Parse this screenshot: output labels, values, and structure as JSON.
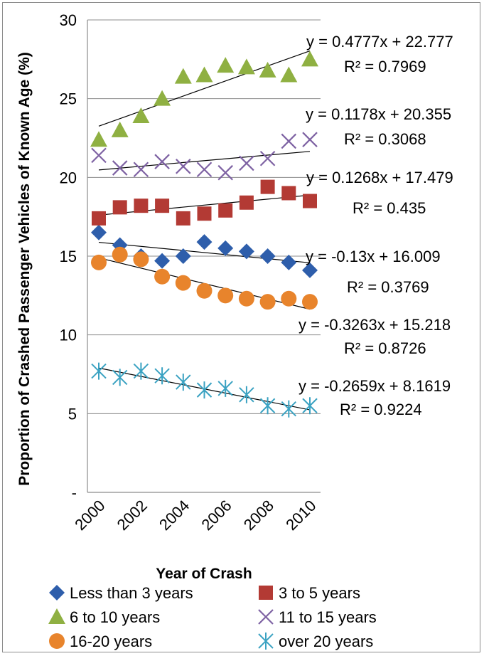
{
  "chart_data": {
    "type": "scatter",
    "title": "",
    "xlabel": "Year of Crash",
    "ylabel": "Proportion of Crashed Passenger Vehicles of Known Age (%)",
    "ylim": [
      0,
      30
    ],
    "xlim": [
      2000,
      2010
    ],
    "y_ticks": [
      "-",
      "5",
      "10",
      "15",
      "20",
      "25",
      "30"
    ],
    "x_ticks": [
      "2000",
      "2002",
      "2004",
      "2006",
      "2008",
      "2010"
    ],
    "grid": "horizontal",
    "legend_position": "bottom",
    "x": [
      2000,
      2001,
      2002,
      2003,
      2004,
      2005,
      2006,
      2007,
      2008,
      2009,
      2010
    ],
    "series": [
      {
        "name": "Less than 3 years",
        "marker": "diamond",
        "color": "#2e5eab",
        "values": [
          16.5,
          15.7,
          15.0,
          14.7,
          15.0,
          15.9,
          15.5,
          15.3,
          15.0,
          14.6,
          14.1
        ],
        "trend": {
          "slope": -0.13,
          "intercept": 16.009
        },
        "equation": "y = -0.13x + 16.009",
        "r2": "R² = 0.3769"
      },
      {
        "name": "3 to 5 years",
        "marker": "square",
        "color": "#b33a34",
        "values": [
          17.4,
          18.1,
          18.2,
          18.2,
          17.4,
          17.7,
          17.9,
          18.4,
          19.4,
          19.0,
          18.5
        ],
        "trend": {
          "slope": 0.1268,
          "intercept": 17.479
        },
        "equation": "y = 0.1268x + 17.479",
        "r2": "R² = 0.435"
      },
      {
        "name": "6 to 10 years",
        "marker": "triangle",
        "color": "#8fb042",
        "values": [
          22.4,
          23.0,
          23.9,
          25.0,
          26.4,
          26.5,
          27.1,
          27.0,
          26.8,
          26.5,
          27.5
        ],
        "trend": {
          "slope": 0.4777,
          "intercept": 22.777
        },
        "equation": "y = 0.4777x + 22.777",
        "r2": "R² = 0.7969"
      },
      {
        "name": "11 to 15 years",
        "marker": "x",
        "color": "#7e62a3",
        "values": [
          21.4,
          20.6,
          20.5,
          21.0,
          20.7,
          20.5,
          20.3,
          20.9,
          21.2,
          22.3,
          22.4
        ],
        "trend": {
          "slope": 0.1178,
          "intercept": 20.355
        },
        "equation": "y = 0.1178x + 20.355",
        "r2": "R² = 0.3068"
      },
      {
        "name": "16-20 years",
        "marker": "circle",
        "color": "#e8842c",
        "values": [
          14.6,
          15.1,
          14.8,
          13.7,
          13.3,
          12.8,
          12.5,
          12.3,
          12.1,
          12.3,
          12.1
        ],
        "trend": {
          "slope": -0.3263,
          "intercept": 15.218
        },
        "equation": "y = -0.3263x + 15.218",
        "r2": "R² = 0.8726"
      },
      {
        "name": "over 20 years",
        "marker": "asterisk",
        "color": "#3aa2c2",
        "values": [
          7.7,
          7.3,
          7.7,
          7.4,
          7.0,
          6.5,
          6.6,
          6.2,
          5.5,
          5.3,
          5.5
        ],
        "trend": {
          "slope": -0.2659,
          "intercept": 8.1619
        },
        "equation": "y = -0.2659x + 8.1619",
        "r2": "R² = 0.9224"
      }
    ]
  }
}
